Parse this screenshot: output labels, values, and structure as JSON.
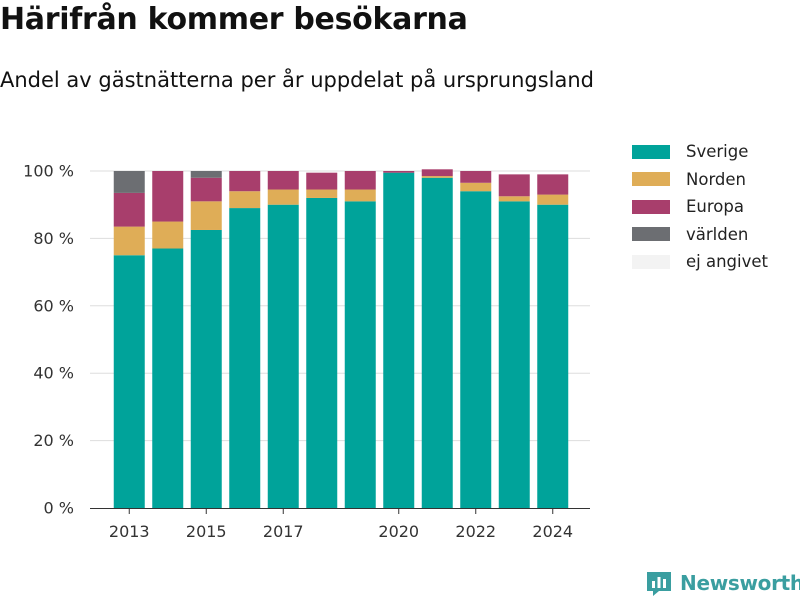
{
  "header": {
    "title": "Härifrån kommer besökarna",
    "subtitle": "Andel av gästnätterna per år uppdelat på ursprungsland"
  },
  "brand": {
    "label": "Newsworthy",
    "icon": "newsworthy-logo-icon",
    "color": "#3a9ea0"
  },
  "chart_data": {
    "type": "bar",
    "stacked": true,
    "title": "Härifrån kommer besökarna",
    "subtitle": "Andel av gästnätterna per år uppdelat på ursprungsland",
    "xlabel": "",
    "ylabel": "",
    "categories": [
      "2013",
      "2014",
      "2015",
      "2016",
      "2017",
      "2018",
      "2019",
      "2020",
      "2021",
      "2022",
      "2023",
      "2024"
    ],
    "x_tick_labels": [
      "2013",
      "2015",
      "2017",
      "2020",
      "2022",
      "2024"
    ],
    "y_ticks": [
      0,
      20,
      40,
      60,
      80,
      100
    ],
    "y_tick_suffix": " %",
    "ylim": [
      0,
      100
    ],
    "grid": true,
    "legend_position": "right",
    "series": [
      {
        "name": "Sverige",
        "color": "#00a39a",
        "values": [
          75,
          77,
          82.5,
          89,
          90,
          92,
          91,
          99.5,
          98,
          94,
          91,
          90
        ]
      },
      {
        "name": "Norden",
        "color": "#dfad57",
        "values": [
          8.5,
          8,
          8.5,
          5,
          4.5,
          2.5,
          3.5,
          0,
          0.5,
          2.5,
          1.5,
          3
        ]
      },
      {
        "name": "Europa",
        "color": "#a83e6c",
        "values": [
          10,
          15,
          7,
          6,
          5.5,
          5,
          5.5,
          0.5,
          2,
          3.5,
          6.5,
          6
        ]
      },
      {
        "name": "världen",
        "color": "#6c6e72",
        "values": [
          6.5,
          0,
          2,
          0,
          0,
          0,
          0,
          0,
          0,
          0,
          0,
          0
        ]
      },
      {
        "name": "ej angivet",
        "color": "#f3f3f3",
        "values": [
          0,
          0,
          0,
          0,
          0,
          0,
          0,
          0,
          0,
          0,
          0,
          0
        ]
      }
    ]
  }
}
